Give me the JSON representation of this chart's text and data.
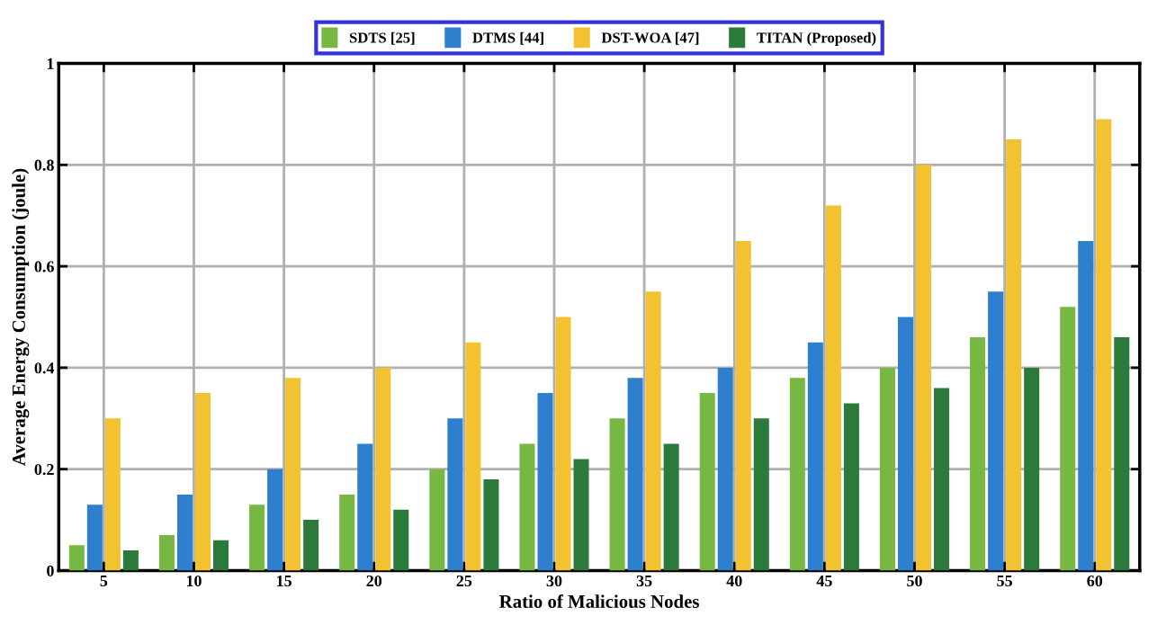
{
  "chart_data": {
    "type": "bar",
    "xlabel": "Ratio of Malicious Nodes",
    "ylabel": "Average Energy Consumption (joule)",
    "categories": [
      "5",
      "10",
      "15",
      "20",
      "25",
      "30",
      "35",
      "40",
      "45",
      "50",
      "55",
      "60"
    ],
    "series": [
      {
        "name": "SDTS [25]",
        "color": "#77b843",
        "values": [
          0.05,
          0.07,
          0.13,
          0.15,
          0.2,
          0.25,
          0.3,
          0.35,
          0.38,
          0.4,
          0.46,
          0.52
        ]
      },
      {
        "name": "DTMS [44]",
        "color": "#2f7fcf",
        "values": [
          0.13,
          0.15,
          0.2,
          0.25,
          0.3,
          0.35,
          0.38,
          0.4,
          0.45,
          0.5,
          0.55,
          0.65
        ]
      },
      {
        "name": "DST-WOA [47]",
        "color": "#f2c231",
        "values": [
          0.3,
          0.35,
          0.38,
          0.4,
          0.45,
          0.5,
          0.55,
          0.65,
          0.72,
          0.8,
          0.85,
          0.89
        ]
      },
      {
        "name": "TITAN (Proposed)",
        "color": "#2b7a3b",
        "values": [
          0.04,
          0.06,
          0.1,
          0.12,
          0.18,
          0.22,
          0.25,
          0.3,
          0.33,
          0.36,
          0.4,
          0.46
        ]
      }
    ],
    "ylim": [
      0,
      1
    ],
    "yticks": [
      0,
      0.2,
      0.4,
      0.6,
      0.8,
      1
    ],
    "grid": true,
    "legend": "top"
  }
}
